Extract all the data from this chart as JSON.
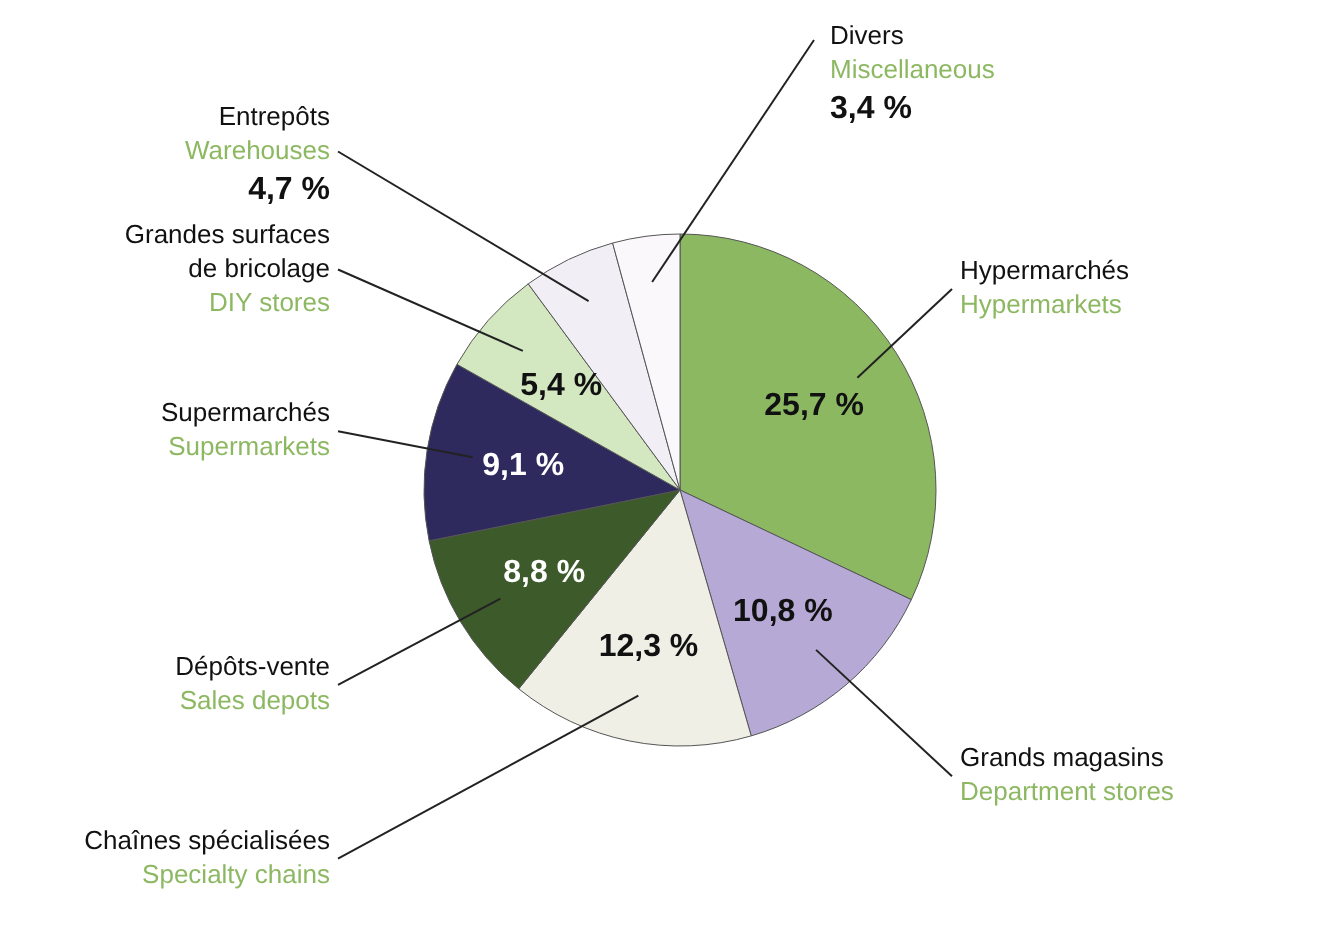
{
  "chart_data": {
    "type": "pie",
    "categories": [
      "Hypermarchés\nHypermarkets",
      "Grands magasins\nDepartment stores",
      "Chaînes spécialisées\nSpecialty chains",
      "Dépôts-vente\nSales depots",
      "Supermarchés\nSupermarkets",
      "Grandes surfaces\nde bricolage\nDIY stores",
      "Entrepôts\nWarehouses",
      "Divers\nMiscellaneous"
    ],
    "values": [
      25.7,
      10.8,
      12.3,
      8.8,
      9.1,
      5.4,
      4.7,
      3.4
    ],
    "value_labels": [
      "25,7 %",
      "10,8 %",
      "12,3 %",
      "8,8 %",
      "9,1 %",
      "5,4 %",
      "4,7 %",
      "3,4 %"
    ],
    "colors": [
      "#8db862",
      "#b7a9d6",
      "#efefe6",
      "#3d5a2a",
      "#2e2a5e",
      "#d3e8c0",
      "#f2eef5",
      "#fbf8fc"
    ]
  }
}
